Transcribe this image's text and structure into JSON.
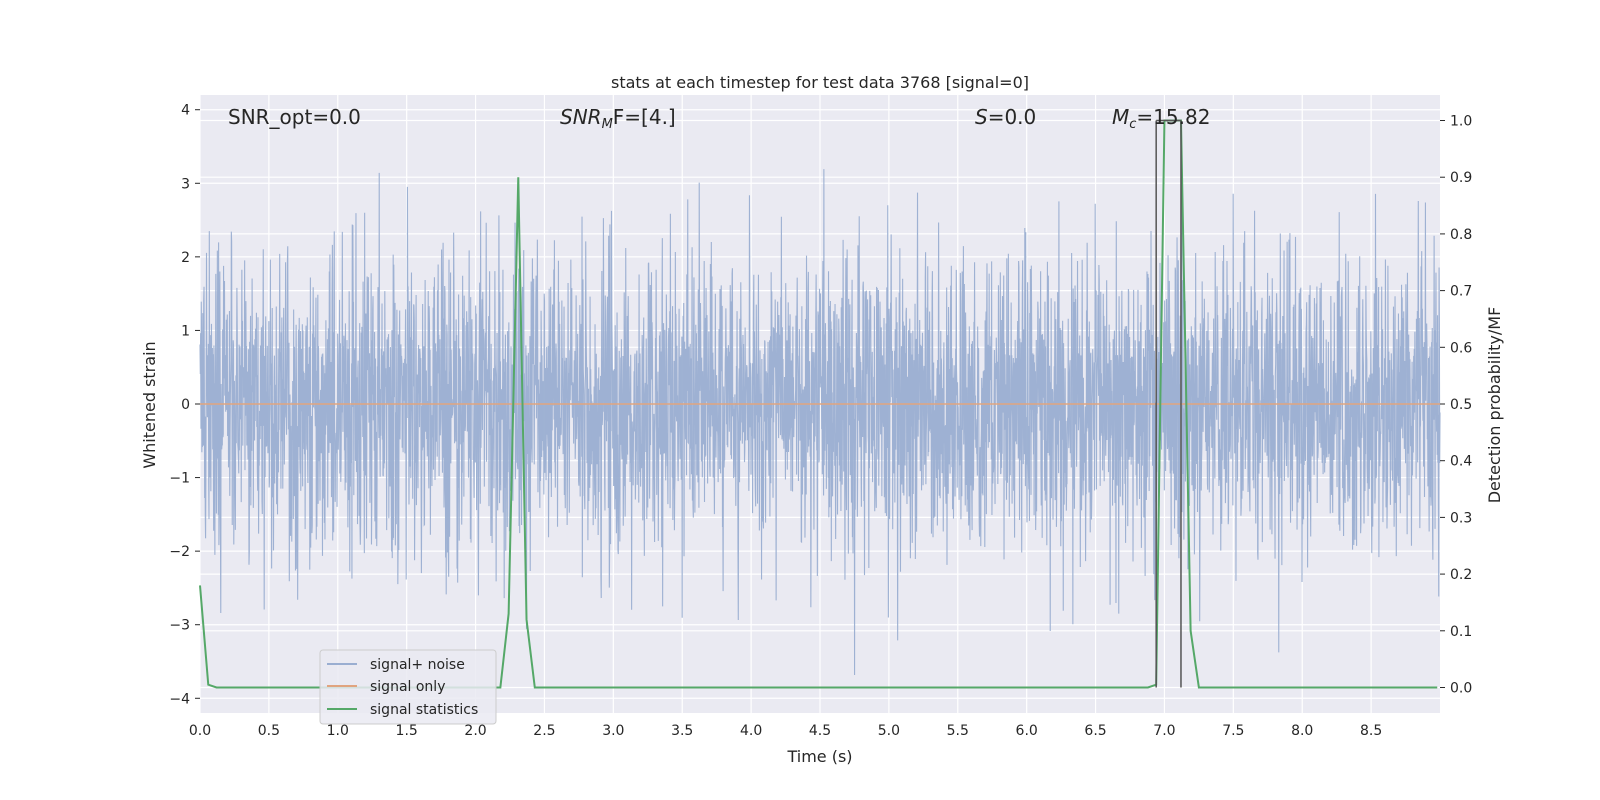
{
  "chart_data": {
    "type": "line",
    "title": "stats at each timestep for test data 3768 [signal=0]",
    "xlabel": "Time (s)",
    "ylabel_left": "Whitened strain",
    "ylabel_right": "Detection probability/MF",
    "xlim": [
      0.0,
      9.0
    ],
    "ylim_left": [
      -4.2,
      4.2
    ],
    "ylim_right": [
      -0.045,
      1.045
    ],
    "x_ticks": [
      "0.0",
      "0.5",
      "1.0",
      "1.5",
      "2.0",
      "2.5",
      "3.0",
      "3.5",
      "4.0",
      "4.5",
      "5.0",
      "5.5",
      "6.0",
      "6.5",
      "7.0",
      "7.5",
      "8.0",
      "8.5"
    ],
    "y_ticks_left": [
      "−4",
      "−3",
      "−2",
      "−1",
      "0",
      "1",
      "2",
      "3",
      "4"
    ],
    "y_ticks_right": [
      "0.0",
      "0.1",
      "0.2",
      "0.3",
      "0.4",
      "0.5",
      "0.6",
      "0.7",
      "0.8",
      "0.9",
      "1.0"
    ],
    "grid": true,
    "legend_position": "lower-left",
    "annotations": {
      "snr_opt": "SNR_opt=0.0",
      "snr_mf_base": "SNR",
      "snr_mf_sub": "M",
      "snr_mf_rest": "F=[4.]",
      "s_var": "S",
      "s_rest": "=0.0",
      "mc_var": "M",
      "mc_sub": "c",
      "mc_rest": "=15.82"
    },
    "series": [
      {
        "name": "signal+ noise",
        "color": "#9aaed1",
        "description_values": "noise strain, amplitude mostly within ±2.5, peaks to about ±3.4",
        "amplitude_range": [
          -4.0,
          3.45
        ]
      },
      {
        "name": "signal only",
        "color": "#e0a47f",
        "x": [
          0.0,
          9.0
        ],
        "y": [
          0.0,
          0.0
        ]
      },
      {
        "name": "signal statistics",
        "color": "#55a868",
        "x": [
          0.0,
          0.06,
          0.12,
          2.18,
          2.24,
          2.31,
          2.37,
          2.43,
          6.88,
          6.94,
          7.0,
          7.06,
          7.12,
          7.19,
          7.25,
          8.98
        ],
        "y": [
          0.18,
          0.005,
          0.0,
          0.0,
          0.13,
          0.9,
          0.12,
          0.0,
          0.0,
          0.005,
          1.0,
          1.0,
          1.0,
          0.1,
          0.0,
          0.0
        ]
      }
    ],
    "vertical_markers": [
      6.94,
      7.12
    ],
    "marker_color": "#555555"
  },
  "legend": {
    "items": [
      "signal+ noise",
      "signal only",
      "signal statistics"
    ]
  }
}
